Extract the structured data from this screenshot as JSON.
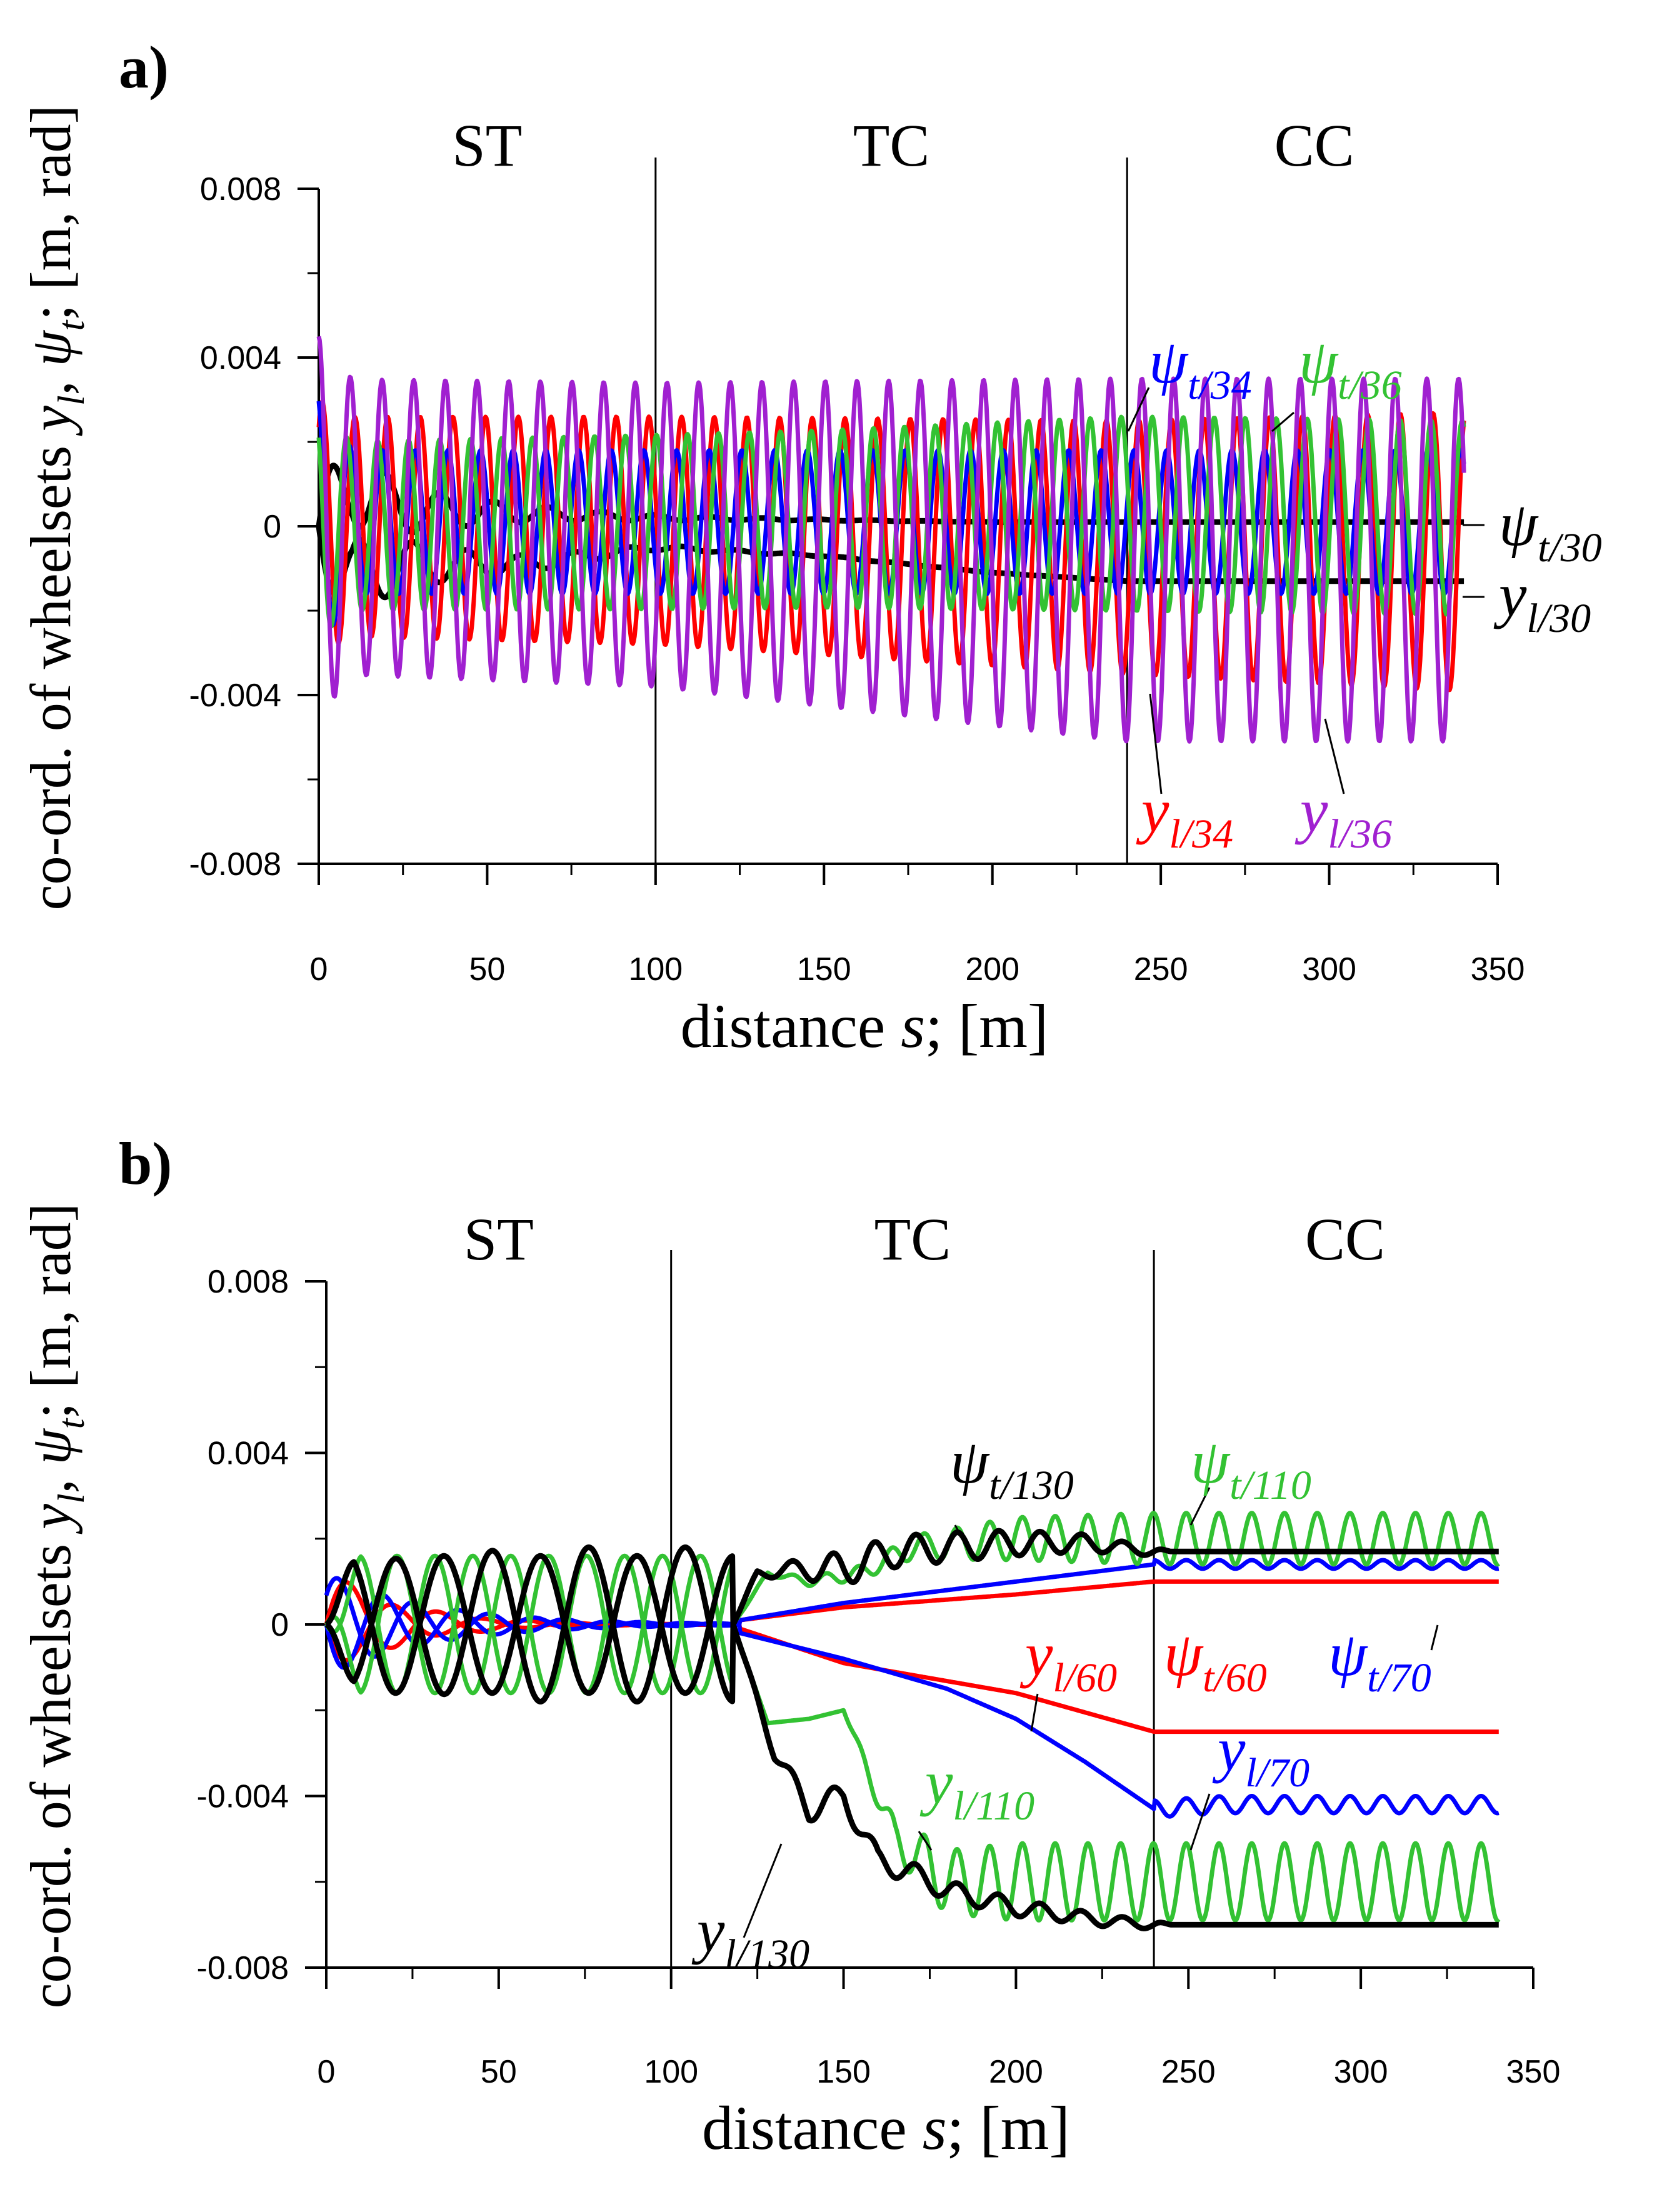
{
  "chart_data": [
    {
      "type": "line",
      "panel_label": "a)",
      "xlabel_parts": [
        "distance ",
        "s",
        "; [m]"
      ],
      "ylabel_parts": [
        "co-ord. of wheelsets ",
        "y",
        "l",
        ", ",
        "ψ",
        "t",
        "; [m, rad]"
      ],
      "xlim": [
        0,
        350
      ],
      "ylim": [
        -0.008,
        0.008
      ],
      "xticks": [
        "0",
        "50",
        "100",
        "150",
        "200",
        "250",
        "300",
        "350"
      ],
      "yticks": [
        "0.008",
        "0.004",
        "0",
        "-0.004",
        "-0.008"
      ],
      "sections": [
        {
          "label": "ST",
          "start": 0,
          "end": 100
        },
        {
          "label": "TC",
          "start": 100,
          "end": 240
        },
        {
          "label": "CC",
          "start": 240,
          "end": 340
        }
      ],
      "series": [
        {
          "name": "ψt/30",
          "symbol": "ψ",
          "sub": "t/30",
          "color": "#000000"
        },
        {
          "name": "yl/30",
          "symbol": "y",
          "sub": "l/30",
          "color": "#000000"
        },
        {
          "name": "yl/34",
          "symbol": "y",
          "sub": "l/34",
          "color": "#ff0000"
        },
        {
          "name": "ψt/34",
          "symbol": "ψ",
          "sub": "t/34",
          "color": "#0000ff"
        },
        {
          "name": "ψt/36",
          "symbol": "ψ",
          "sub": "t/36",
          "color": "#33c233"
        },
        {
          "name": "yl/36",
          "symbol": "y",
          "sub": "l/36",
          "color": "#a020d0"
        }
      ],
      "samples": {
        "x": [
          0,
          10,
          25,
          50,
          100,
          150,
          200,
          240,
          300,
          340
        ],
        "yl/30": [
          0,
          -0.0022,
          -0.0008,
          -0.0009,
          -0.0005,
          -0.0007,
          -0.0011,
          -0.0013,
          -0.0013,
          -0.0013
        ],
        "ψt/30": [
          0,
          0.0022,
          0.0008,
          0.0006,
          0.0002,
          0.0001,
          0.0001,
          0.0001,
          0.0001,
          0.0001
        ],
        "yl/34_envelope": [
          0.003,
          0.0025,
          0.0026,
          0.0026,
          0.0027,
          0.0028,
          0.0029,
          0.003,
          0.0032,
          0.0033
        ],
        "ψt/34_envelope": [
          0.003,
          0.0018,
          0.0017,
          0.0017,
          0.0017,
          0.0017,
          0.0017,
          0.0017,
          0.0017,
          0.0017
        ],
        "ψt/36_envelope": [
          0.003,
          0.0021,
          0.0021,
          0.0021,
          0.0021,
          0.0022,
          0.0023,
          0.0024,
          0.0024,
          0.0024
        ],
        "yl/36_envelope": [
          0.0045,
          0.0035,
          0.0035,
          0.0035,
          0.0035,
          0.0037,
          0.004,
          0.0043,
          0.0043,
          0.0043
        ]
      }
    },
    {
      "type": "line",
      "panel_label": "b)",
      "xlabel_parts": [
        "distance ",
        "s",
        "; [m]"
      ],
      "ylabel_parts": [
        "co-ord. of wheelsets ",
        "y",
        "l",
        ", ",
        "ψ",
        "t",
        "; [m, rad]"
      ],
      "xlim": [
        0,
        350
      ],
      "ylim": [
        -0.008,
        0.008
      ],
      "xticks": [
        "0",
        "50",
        "100",
        "150",
        "200",
        "250",
        "300",
        "350"
      ],
      "yticks": [
        "0.008",
        "0.004",
        "0",
        "-0.004",
        "-0.008"
      ],
      "sections": [
        {
          "label": "ST",
          "start": 0,
          "end": 100
        },
        {
          "label": "TC",
          "start": 100,
          "end": 240
        },
        {
          "label": "CC",
          "start": 240,
          "end": 340
        }
      ],
      "series": [
        {
          "name": "yl/60",
          "symbol": "y",
          "sub": "l/60",
          "color": "#ff0000"
        },
        {
          "name": "ψt/60",
          "symbol": "ψ",
          "sub": "t/60",
          "color": "#ff0000"
        },
        {
          "name": "yl/70",
          "symbol": "y",
          "sub": "l/70",
          "color": "#0000ff"
        },
        {
          "name": "ψt/70",
          "symbol": "ψ",
          "sub": "t/70",
          "color": "#0000ff"
        },
        {
          "name": "yl/110",
          "symbol": "y",
          "sub": "l/110",
          "color": "#33c233"
        },
        {
          "name": "ψt/110",
          "symbol": "ψ",
          "sub": "t/110",
          "color": "#33c233"
        },
        {
          "name": "yl/130",
          "symbol": "y",
          "sub": "l/130",
          "color": "#000000"
        },
        {
          "name": "ψt/130",
          "symbol": "ψ",
          "sub": "t/130",
          "color": "#000000"
        }
      ],
      "samples": {
        "x": [
          0,
          100,
          120,
          150,
          200,
          240,
          300,
          340
        ],
        "yl/60": [
          0,
          0,
          -0.0002,
          -0.0009,
          -0.0016,
          -0.0025,
          -0.0025,
          -0.0025
        ],
        "ψt/60": [
          0,
          0,
          0.0001,
          0.0004,
          0.0007,
          0.001,
          0.001,
          0.001
        ],
        "yl/70": [
          0,
          0,
          -0.0002,
          -0.0008,
          -0.0022,
          -0.0043,
          -0.0043,
          -0.0042
        ],
        "ψt/70": [
          0,
          0,
          0.0001,
          0.0005,
          0.001,
          0.0014,
          0.0014,
          0.0014
        ],
        "yl/110": [
          0,
          0,
          -0.0003,
          -0.0018,
          -0.006,
          -0.006,
          -0.006,
          -0.006
        ],
        "ψt/110": [
          0,
          0,
          0.0003,
          0.0014,
          0.002,
          0.002,
          0.002,
          0.002
        ],
        "yl/130": [
          0,
          0,
          -0.0004,
          -0.004,
          -0.0066,
          -0.007,
          -0.007,
          -0.007
        ],
        "ψt/130": [
          0,
          0,
          0.0004,
          0.0013,
          0.0019,
          0.0017,
          0.0017,
          0.0017
        ]
      }
    }
  ]
}
